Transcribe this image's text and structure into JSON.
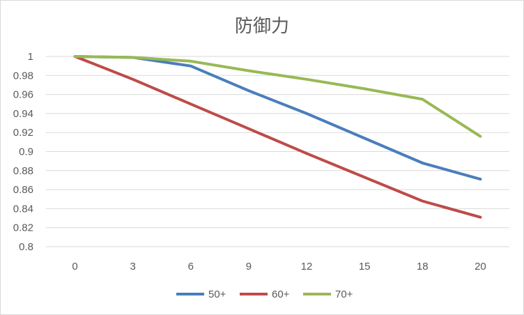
{
  "chart_data": {
    "type": "line",
    "title": "防御力",
    "xlabel": "",
    "ylabel": "",
    "x": [
      0,
      3,
      6,
      9,
      12,
      15,
      18,
      20
    ],
    "x_tick_labels": [
      "0",
      "3",
      "6",
      "9",
      "12",
      "15",
      "18",
      "20"
    ],
    "ylim": [
      0.8,
      1.0
    ],
    "y_ticks": [
      0.8,
      0.82,
      0.84,
      0.86,
      0.88,
      0.9,
      0.92,
      0.94,
      0.96,
      0.98,
      1.0
    ],
    "y_tick_labels": [
      "0.8",
      "0.82",
      "0.84",
      "0.86",
      "0.88",
      "0.9",
      "0.92",
      "0.94",
      "0.96",
      "0.98",
      "1"
    ],
    "grid": true,
    "legend_position": "bottom",
    "series": [
      {
        "name": "50+",
        "color": "#4a7ebb",
        "values": [
          1.0,
          0.999,
          0.99,
          0.964,
          0.94,
          0.914,
          0.888,
          0.871
        ]
      },
      {
        "name": "60+",
        "color": "#be4b48",
        "values": [
          1.0,
          0.976,
          0.95,
          0.924,
          0.898,
          0.873,
          0.848,
          0.831
        ]
      },
      {
        "name": "70+",
        "color": "#98b954",
        "values": [
          1.0,
          0.999,
          0.995,
          0.985,
          0.976,
          0.966,
          0.955,
          0.916
        ]
      }
    ]
  }
}
